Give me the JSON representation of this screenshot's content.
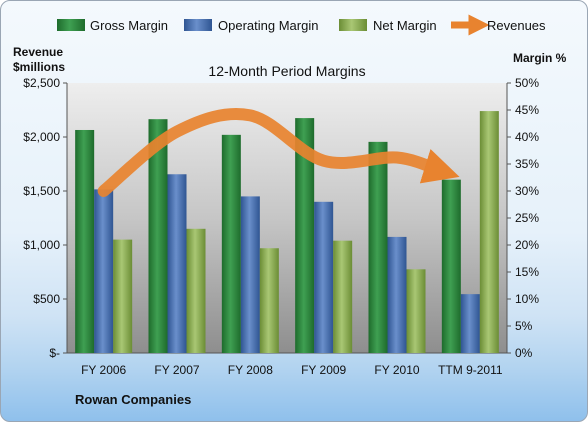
{
  "company": "Rowan Companies",
  "chart_data": {
    "type": "bar",
    "title": "12-Month Period Margins",
    "left_axis_label_line1": "Revenue",
    "left_axis_label_line2": "$millions",
    "right_axis_label": "Margin %",
    "categories": [
      "FY 2006",
      "FY 2007",
      "FY 2008",
      "FY 2009",
      "FY 2010",
      "TTM 9-2011"
    ],
    "left_ylim": [
      0,
      2500
    ],
    "left_ticks": [
      0,
      500,
      1000,
      1500,
      2000,
      2500
    ],
    "left_tick_labels": [
      "$-",
      "$500",
      "$1,000",
      "$1,500",
      "$2,000",
      "$2,500"
    ],
    "right_ylim": [
      0,
      50
    ],
    "right_ticks": [
      0,
      5,
      10,
      15,
      20,
      25,
      30,
      35,
      40,
      45,
      50
    ],
    "right_tick_labels": [
      "0%",
      "5%",
      "10%",
      "15%",
      "20%",
      "25%",
      "30%",
      "35%",
      "40%",
      "45%",
      "50%"
    ],
    "legend_position": "top",
    "grid": false,
    "series": [
      {
        "name": "Gross Margin",
        "kind": "bar",
        "axis": "right",
        "color": "#2e8b3e",
        "values": [
          41.3,
          43.3,
          40.4,
          43.5,
          39.1,
          32.1
        ]
      },
      {
        "name": "Operating Margin",
        "kind": "bar",
        "axis": "right",
        "color": "#4a72b0",
        "values": [
          30.3,
          33.1,
          29.0,
          28.0,
          21.5,
          10.9
        ]
      },
      {
        "name": "Net Margin",
        "kind": "bar",
        "axis": "right",
        "color": "#8db052",
        "values": [
          21.0,
          23.0,
          19.4,
          20.8,
          15.5,
          44.8
        ]
      },
      {
        "name": "Revenues",
        "kind": "line",
        "axis": "left",
        "color": "#e8832f",
        "values": [
          1500,
          2050,
          2200,
          1780,
          1810,
          1680
        ]
      }
    ]
  }
}
